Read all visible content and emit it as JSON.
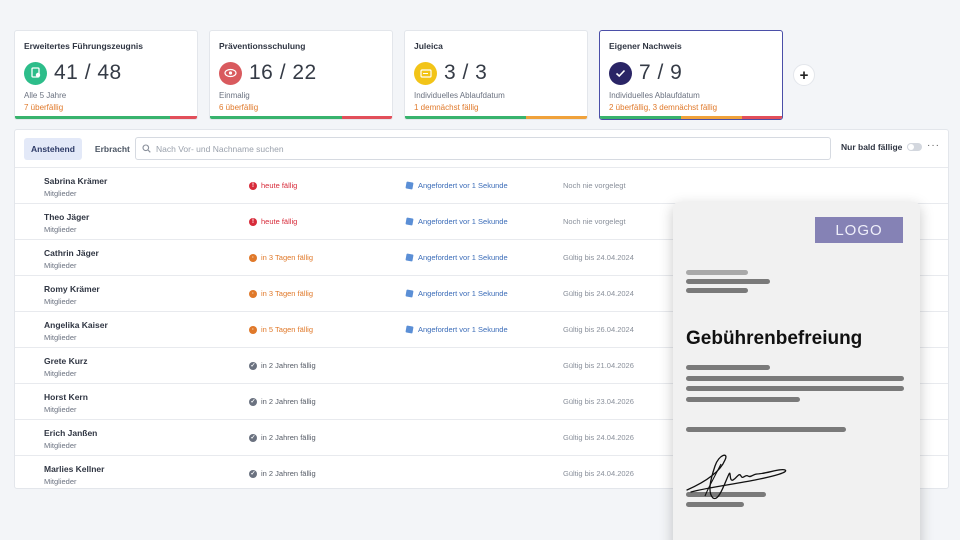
{
  "cards": [
    {
      "title": "Erweitertes Führungszeugnis",
      "count": "41 / 48",
      "sub": "Alle 5 Jahre",
      "warn": "7 überfällig",
      "badge_color": "#2dbd8a",
      "icon": "certificate-icon"
    },
    {
      "title": "Präventionsschulung",
      "count": "16 / 22",
      "sub": "Einmalig",
      "warn": "6 überfällig",
      "badge_color": "#d95a5e",
      "icon": "eye-icon"
    },
    {
      "title": "Juleica",
      "count": "3 / 3",
      "sub": "Individuelles Ablaufdatum",
      "warn": "1 demnächst fällig",
      "badge_color": "#f2c418",
      "icon": "card-icon"
    },
    {
      "title": "Eigener Nachweis",
      "count": "7 / 9",
      "sub": "Individuelles Ablaufdatum",
      "warn": "2 überfällig, 3 demnächst fällig",
      "badge_color": "#2a2566",
      "icon": "check-icon"
    }
  ],
  "add_button": "+",
  "toolbar": {
    "tab_pending": "Anstehend",
    "tab_done": "Erbracht",
    "search_placeholder": "Nach Vor- und Nachname suchen",
    "toggle_label": "Nur bald fällige",
    "more": "···"
  },
  "rows": [
    {
      "name": "Sabrina Krämer",
      "role": "Mitglieder",
      "status": "heute fällig",
      "level": "red",
      "requested": "Angefordert vor 1 Sekunde",
      "valid": "Noch nie vorgelegt"
    },
    {
      "name": "Theo Jäger",
      "role": "Mitglieder",
      "status": "heute fällig",
      "level": "red",
      "requested": "Angefordert vor 1 Sekunde",
      "valid": "Noch nie vorgelegt"
    },
    {
      "name": "Cathrin Jäger",
      "role": "Mitglieder",
      "status": "in 3 Tagen fällig",
      "level": "orange",
      "requested": "Angefordert vor 1 Sekunde",
      "valid": "Gültig bis 24.04.2024"
    },
    {
      "name": "Romy Krämer",
      "role": "Mitglieder",
      "status": "in 3 Tagen fällig",
      "level": "orange",
      "requested": "Angefordert vor 1 Sekunde",
      "valid": "Gültig bis 24.04.2024"
    },
    {
      "name": "Angelika Kaiser",
      "role": "Mitglieder",
      "status": "in 5 Tagen fällig",
      "level": "orange",
      "requested": "Angefordert vor 1 Sekunde",
      "valid": "Gültig bis 26.04.2024"
    },
    {
      "name": "Grete Kurz",
      "role": "Mitglieder",
      "status": "in 2 Jahren fällig",
      "level": "gray",
      "requested": "",
      "valid": "Gültig bis 21.04.2026"
    },
    {
      "name": "Horst Kern",
      "role": "Mitglieder",
      "status": "in 2 Jahren fällig",
      "level": "gray",
      "requested": "",
      "valid": "Gültig bis 23.04.2026"
    },
    {
      "name": "Erich Janßen",
      "role": "Mitglieder",
      "status": "in 2 Jahren fällig",
      "level": "gray",
      "requested": "",
      "valid": "Gültig bis 24.04.2026"
    },
    {
      "name": "Marlies Kellner",
      "role": "Mitglieder",
      "status": "in 2 Jahren fällig",
      "level": "gray",
      "requested": "",
      "valid": "Gültig bis 24.04.2026"
    }
  ],
  "document": {
    "logo": "LOGO",
    "title": "Gebührenbefreiung"
  }
}
